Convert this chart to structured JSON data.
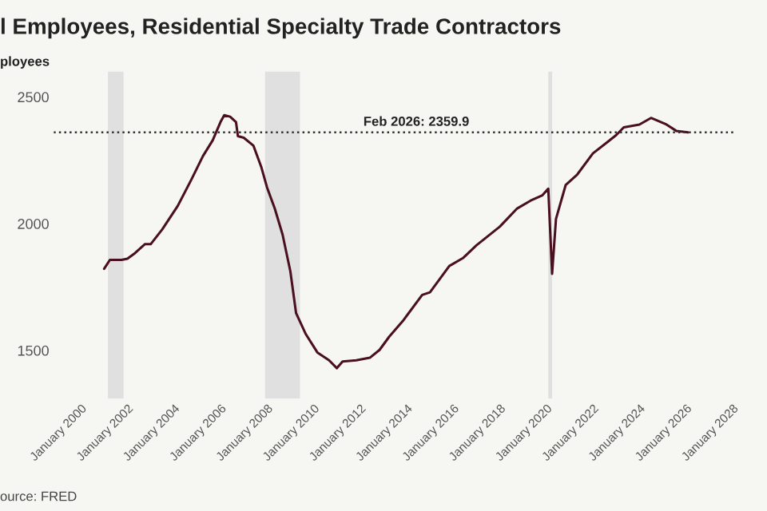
{
  "chart_data": {
    "type": "line",
    "title": "l Employees, Residential Specialty Trade Contractors",
    "ylabel": "ployees",
    "x": [
      "2001-01",
      "2001-04",
      "2001-10",
      "2002-01",
      "2002-05",
      "2002-10",
      "2003-01",
      "2003-07",
      "2004-03",
      "2004-10",
      "2005-04",
      "2005-09",
      "2006-01",
      "2006-03",
      "2006-06",
      "2006-09",
      "2006-10",
      "2007-01",
      "2007-06",
      "2007-10",
      "2008-01",
      "2008-05",
      "2008-09",
      "2009-01",
      "2009-04",
      "2009-09",
      "2010-03",
      "2010-09",
      "2011-01",
      "2011-04",
      "2011-11",
      "2012-06",
      "2012-11",
      "2013-04",
      "2013-11",
      "2014-09",
      "2015-01",
      "2015-11",
      "2016-06",
      "2017-01",
      "2018-01",
      "2018-10",
      "2019-05",
      "2019-11",
      "2020-02",
      "2020-04",
      "2020-06",
      "2020-11",
      "2021-05",
      "2022-01",
      "2023-01",
      "2023-05",
      "2024-01",
      "2024-07",
      "2025-03",
      "2025-08",
      "2026-02"
    ],
    "series": [
      {
        "color": "#4a1020",
        "values": [
          1822,
          1857,
          1857,
          1862,
          1884,
          1919,
          1919,
          1977,
          2070,
          2174,
          2267,
          2329,
          2401,
          2428,
          2422,
          2401,
          2345,
          2339,
          2308,
          2225,
          2143,
          2060,
          1957,
          1812,
          1647,
          1564,
          1492,
          1461,
          1430,
          1456,
          1461,
          1471,
          1502,
          1554,
          1616,
          1719,
          1729,
          1833,
          1864,
          1915,
          1988,
          2060,
          2091,
          2112,
          2138,
          1802,
          2019,
          2153,
          2194,
          2277,
          2349,
          2380,
          2391,
          2417,
          2391,
          2366,
          2360
        ]
      }
    ],
    "xlim": [
      "1998-11",
      "2028-03"
    ],
    "xticks": [
      {
        "value": "2000-01",
        "label": "January 2000"
      },
      {
        "value": "2002-01",
        "label": "January 2002"
      },
      {
        "value": "2004-01",
        "label": "January 2004"
      },
      {
        "value": "2006-01",
        "label": "January 2006"
      },
      {
        "value": "2008-01",
        "label": "January 2008"
      },
      {
        "value": "2010-01",
        "label": "January 2010"
      },
      {
        "value": "2012-01",
        "label": "January 2012"
      },
      {
        "value": "2014-01",
        "label": "January 2014"
      },
      {
        "value": "2016-01",
        "label": "January 2016"
      },
      {
        "value": "2018-01",
        "label": "January 2018"
      },
      {
        "value": "2020-01",
        "label": "January 2020"
      },
      {
        "value": "2022-01",
        "label": "January 2022"
      },
      {
        "value": "2024-01",
        "label": "January 2024"
      },
      {
        "value": "2026-01",
        "label": "January 2026"
      },
      {
        "value": "2028-01",
        "label": "January 2028"
      }
    ],
    "ylim": [
      1310,
      2600
    ],
    "yticks": [
      1500,
      2000,
      2500
    ],
    "ref_lines": [
      {
        "axis": "y",
        "value": 2359.9,
        "label": "Feb 2026: 2359.9",
        "line_style": "dotted",
        "color": "#333333"
      }
    ],
    "bands": [
      {
        "axis": "x",
        "from": "2001-03",
        "to": "2001-11",
        "color": "#e0e0e0"
      },
      {
        "axis": "x",
        "from": "2007-12",
        "to": "2009-06",
        "color": "#e0e0e0"
      },
      {
        "axis": "x",
        "from": "2020-02",
        "to": "2020-04",
        "color": "#e0e0e0"
      }
    ],
    "annotations": [
      "ource: FRED"
    ],
    "grid": false,
    "legend": false
  }
}
